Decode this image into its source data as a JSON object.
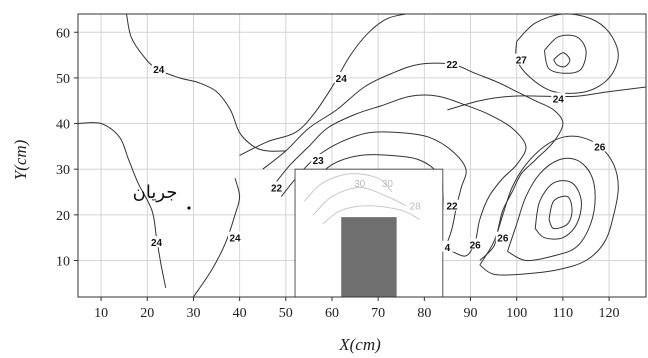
{
  "chart_data": {
    "type": "contour",
    "xlabel": "X(cm)",
    "ylabel": "Y(cm)",
    "xlim": [
      5,
      128
    ],
    "ylim": [
      2,
      64
    ],
    "xticks": [
      10,
      20,
      30,
      40,
      50,
      60,
      70,
      80,
      90,
      100,
      110,
      120
    ],
    "yticks": [
      10,
      20,
      30,
      40,
      50,
      60
    ],
    "grid": true,
    "flow_label": "جريان",
    "inset_box": {
      "x": [
        52,
        84
      ],
      "y": [
        2,
        30
      ]
    },
    "obstacle": {
      "x": [
        62,
        74
      ],
      "y": [
        2,
        19.5
      ],
      "color": "#6f6f6f"
    },
    "contours": [
      {
        "label": "24",
        "points": [
          [
            15.5,
            64
          ],
          [
            16.5,
            59
          ],
          [
            19,
            55
          ],
          [
            22,
            52
          ],
          [
            27,
            50
          ],
          [
            31,
            49
          ],
          [
            35,
            47
          ],
          [
            38,
            43
          ],
          [
            40,
            38
          ],
          [
            43,
            35
          ],
          [
            46,
            34
          ],
          [
            50,
            34
          ]
        ]
      },
      {
        "label": "24",
        "points": [
          [
            5,
            40
          ],
          [
            10,
            40
          ],
          [
            14,
            37
          ],
          [
            16,
            32
          ],
          [
            18,
            27
          ],
          [
            21,
            21
          ],
          [
            22,
            15
          ],
          [
            23,
            9
          ],
          [
            24,
            4
          ]
        ]
      },
      {
        "label": "24",
        "points": [
          [
            30,
            2
          ],
          [
            34,
            8
          ],
          [
            37,
            14
          ],
          [
            39,
            20
          ],
          [
            40,
            24
          ],
          [
            39,
            28
          ]
        ]
      },
      {
        "label": "24",
        "points": [
          [
            40,
            33
          ],
          [
            46,
            36
          ],
          [
            52,
            38
          ],
          [
            56,
            42
          ],
          [
            60,
            48
          ],
          [
            64,
            55
          ],
          [
            68,
            60
          ],
          [
            72,
            63
          ],
          [
            76,
            64
          ]
        ]
      },
      {
        "label": "22",
        "points": [
          [
            45,
            30
          ],
          [
            50,
            34
          ],
          [
            55,
            39
          ],
          [
            61,
            43
          ],
          [
            67,
            48
          ],
          [
            73,
            51
          ],
          [
            79,
            53
          ],
          [
            86,
            53
          ],
          [
            91,
            51
          ],
          [
            96,
            49
          ],
          [
            100,
            47
          ],
          [
            104,
            45
          ],
          [
            108,
            43
          ],
          [
            110,
            40
          ],
          [
            108,
            36
          ],
          [
            104,
            32
          ],
          [
            101,
            29
          ],
          [
            99,
            25
          ],
          [
            97,
            21
          ],
          [
            96,
            17
          ],
          [
            95,
            13
          ],
          [
            92,
            10
          ]
        ]
      },
      {
        "label": "23",
        "points": [
          [
            47,
            26
          ],
          [
            51,
            31
          ],
          [
            55,
            35
          ],
          [
            59,
            39
          ],
          [
            65,
            42
          ],
          [
            71,
            44
          ],
          [
            77,
            46
          ],
          [
            83,
            46
          ],
          [
            89,
            44
          ],
          [
            94,
            42
          ],
          [
            99,
            39
          ],
          [
            102,
            35
          ],
          [
            100,
            31
          ],
          [
            97,
            28
          ],
          [
            94,
            24
          ],
          [
            92,
            19
          ],
          [
            91,
            14
          ],
          [
            89,
            11
          ],
          [
            86,
            12
          ]
        ]
      },
      {
        "label": "22",
        "points": [
          [
            49,
            24
          ],
          [
            53,
            29
          ],
          [
            57,
            33
          ],
          [
            62,
            36
          ],
          [
            68,
            38
          ],
          [
            75,
            38
          ],
          [
            81,
            37
          ],
          [
            86,
            34
          ],
          [
            89,
            30
          ],
          [
            88,
            26
          ],
          [
            87,
            22
          ],
          [
            86,
            17
          ],
          [
            85,
            14
          ]
        ]
      },
      {
        "label": "",
        "points": [
          [
            52,
            22
          ],
          [
            56,
            27
          ],
          [
            60,
            31
          ],
          [
            66,
            33
          ],
          [
            73,
            33
          ],
          [
            79,
            32
          ],
          [
            83,
            29
          ],
          [
            84,
            25
          ],
          [
            84,
            21
          ]
        ]
      },
      {
        "label": "",
        "points": [
          [
            56,
            20
          ],
          [
            60,
            25
          ],
          [
            65,
            28
          ],
          [
            71,
            29
          ],
          [
            77,
            28
          ],
          [
            81,
            25
          ],
          [
            82,
            21
          ]
        ]
      },
      {
        "label": "26",
        "points": [
          [
            92,
            9
          ],
          [
            95,
            14
          ],
          [
            97,
            20
          ],
          [
            99,
            26
          ],
          [
            102,
            31
          ],
          [
            106,
            35
          ],
          [
            110,
            37
          ],
          [
            114,
            37
          ],
          [
            118,
            35
          ],
          [
            121,
            31
          ],
          [
            122,
            26
          ],
          [
            121,
            20
          ],
          [
            119,
            14
          ],
          [
            115,
            10
          ],
          [
            109,
            8
          ],
          [
            101,
            7
          ],
          [
            95,
            7
          ],
          [
            92,
            9
          ]
        ]
      },
      {
        "label": "26",
        "points": [
          [
            98,
            12
          ],
          [
            100,
            18
          ],
          [
            102,
            24
          ],
          [
            105,
            29
          ],
          [
            109,
            32
          ],
          [
            113,
            32
          ],
          [
            116,
            29
          ],
          [
            117,
            24
          ],
          [
            116,
            18
          ],
          [
            113,
            13
          ],
          [
            108,
            11
          ],
          [
            102,
            10
          ],
          [
            98,
            12
          ]
        ]
      },
      {
        "label": "",
        "points": [
          [
            104,
            17
          ],
          [
            105,
            23
          ],
          [
            108,
            27
          ],
          [
            112,
            27
          ],
          [
            114,
            23
          ],
          [
            113,
            18
          ],
          [
            110,
            15
          ],
          [
            106,
            15
          ],
          [
            104,
            17
          ]
        ]
      },
      {
        "label": "",
        "points": [
          [
            107,
            19
          ],
          [
            108,
            23
          ],
          [
            111,
            24
          ],
          [
            112,
            21
          ],
          [
            111,
            18
          ],
          [
            108,
            17
          ],
          [
            107,
            19
          ]
        ]
      },
      {
        "label": "24",
        "points": [
          [
            85,
            43
          ],
          [
            92,
            45
          ],
          [
            99,
            46
          ],
          [
            106,
            46
          ],
          [
            113,
            46
          ],
          [
            120,
            47
          ],
          [
            128,
            48
          ]
        ]
      },
      {
        "label": "27",
        "points": [
          [
            100,
            58
          ],
          [
            104,
            62
          ],
          [
            110,
            64
          ],
          [
            116,
            63
          ],
          [
            120,
            60
          ],
          [
            122,
            55
          ],
          [
            120,
            50
          ],
          [
            115,
            47
          ],
          [
            108,
            47
          ],
          [
            103,
            50
          ],
          [
            100,
            54
          ],
          [
            100,
            58
          ]
        ]
      },
      {
        "label": "",
        "points": [
          [
            106,
            56
          ],
          [
            109,
            59
          ],
          [
            113,
            59
          ],
          [
            115,
            56
          ],
          [
            114,
            52
          ],
          [
            111,
            51
          ],
          [
            107,
            52
          ],
          [
            106,
            56
          ]
        ]
      },
      {
        "label": "",
        "points": [
          [
            108,
            54
          ],
          [
            110,
            55.5
          ],
          [
            111.5,
            54
          ],
          [
            110.5,
            52.5
          ],
          [
            108.8,
            52.8
          ],
          [
            108,
            54
          ]
        ]
      }
    ],
    "inset_contours": [
      {
        "label": "30",
        "points": [
          [
            54,
            23
          ],
          [
            58,
            27
          ],
          [
            64,
            29
          ],
          [
            70,
            28
          ],
          [
            73,
            25
          ]
        ]
      },
      {
        "label": "30",
        "points": [
          [
            56,
            20
          ],
          [
            60,
            24
          ],
          [
            66,
            26
          ],
          [
            72,
            24
          ],
          [
            76,
            22
          ]
        ]
      },
      {
        "label": "28",
        "points": [
          [
            58,
            18
          ],
          [
            62,
            21
          ],
          [
            68,
            22
          ],
          [
            75,
            21
          ],
          [
            79,
            19
          ]
        ]
      }
    ],
    "contour_labels": [
      {
        "text": "24",
        "at": [
          22.5,
          52
        ]
      },
      {
        "text": "24",
        "at": [
          62,
          50
        ]
      },
      {
        "text": "22",
        "at": [
          86,
          53
        ]
      },
      {
        "text": "27",
        "at": [
          101,
          54
        ]
      },
      {
        "text": "24",
        "at": [
          109,
          45.5
        ]
      },
      {
        "text": "26",
        "at": [
          118,
          35
        ]
      },
      {
        "text": "23",
        "at": [
          57,
          32
        ]
      },
      {
        "text": "22",
        "at": [
          48,
          26
        ]
      },
      {
        "text": "22",
        "at": [
          86,
          22
        ]
      },
      {
        "text": "24",
        "at": [
          22,
          14
        ]
      },
      {
        "text": "24",
        "at": [
          39,
          15
        ]
      },
      {
        "text": "26",
        "at": [
          91,
          13.5
        ]
      },
      {
        "text": "26",
        "at": [
          97,
          15
        ]
      },
      {
        "text": "4",
        "at": [
          85,
          13
        ]
      }
    ],
    "faint_labels": [
      {
        "text": "30",
        "at": [
          66,
          27
        ]
      },
      {
        "text": "30",
        "at": [
          72,
          27
        ]
      },
      {
        "text": "28",
        "at": [
          78,
          22
        ]
      }
    ]
  }
}
